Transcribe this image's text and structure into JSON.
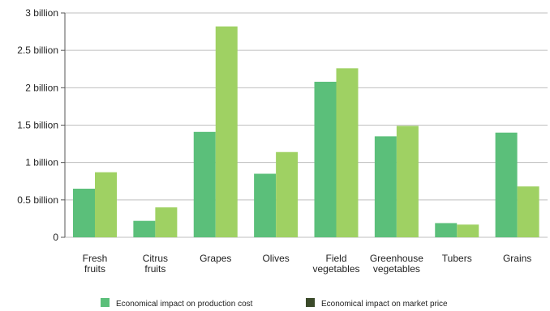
{
  "chart_data": {
    "type": "bar",
    "categories": [
      [
        "Fresh",
        "fruits"
      ],
      [
        "Citrus",
        "fruits"
      ],
      [
        "Grapes"
      ],
      [
        "Olives"
      ],
      [
        "Field",
        "vegetables"
      ],
      [
        "Greenhouse",
        "vegetables"
      ],
      [
        "Tubers"
      ],
      [
        "Grains"
      ]
    ],
    "series": [
      {
        "name": "Economical impact on production cost",
        "color": "#5bbf7a",
        "values": [
          0.65,
          0.22,
          1.41,
          0.85,
          2.08,
          1.35,
          0.19,
          1.4
        ]
      },
      {
        "name": "Economical impact on market price",
        "color": "#9fd163",
        "legend_color": "#3b4a2a",
        "values": [
          0.87,
          0.4,
          2.82,
          1.14,
          2.26,
          1.49,
          0.17,
          0.68
        ]
      }
    ],
    "ylim": [
      0,
      3
    ],
    "yticks": [
      0,
      0.5,
      1,
      1.5,
      2,
      2.5,
      3
    ],
    "ytick_labels": [
      "0",
      "0.5 billion",
      "1 billion",
      "1.5 billion",
      "2 billion",
      "2.5 billion",
      "3 billion"
    ],
    "grid": true,
    "legend_position": "bottom",
    "title": "",
    "xlabel": "",
    "ylabel": ""
  }
}
